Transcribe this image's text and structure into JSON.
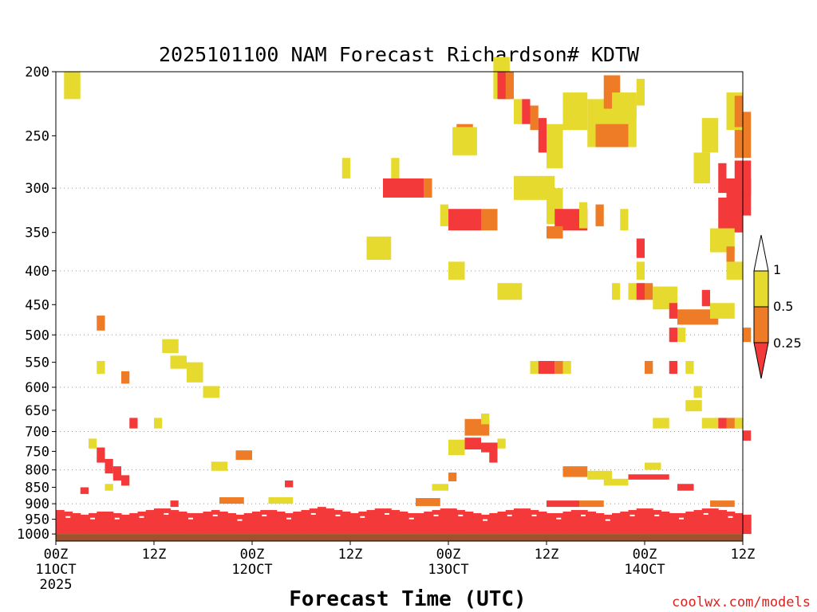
{
  "chart_data": {
    "type": "heatmap",
    "title": "2025101100 NAM Forecast Richardson# KDTW",
    "xlabel": "Forecast Time (UTC)",
    "ylabel": "",
    "ylim": [
      1025,
      200
    ],
    "y_scale": "log-pressure",
    "y_ticks": [
      200,
      250,
      300,
      350,
      400,
      450,
      500,
      550,
      600,
      650,
      700,
      750,
      800,
      850,
      900,
      950,
      1000
    ],
    "y_gridlines": [
      300,
      400,
      500,
      600,
      700,
      800,
      900,
      950
    ],
    "x_range_hours": [
      0,
      84
    ],
    "x_ticks": [
      {
        "hour": 0,
        "label": "00Z",
        "sub": "11OCT",
        "sub2": "2025"
      },
      {
        "hour": 12,
        "label": "12Z",
        "sub": "",
        "sub2": ""
      },
      {
        "hour": 24,
        "label": "00Z",
        "sub": "12OCT",
        "sub2": ""
      },
      {
        "hour": 36,
        "label": "12Z",
        "sub": "",
        "sub2": ""
      },
      {
        "hour": 48,
        "label": "00Z",
        "sub": "13OCT",
        "sub2": ""
      },
      {
        "hour": 60,
        "label": "12Z",
        "sub": "",
        "sub2": ""
      },
      {
        "hour": 72,
        "label": "00Z",
        "sub": "14OCT",
        "sub2": ""
      },
      {
        "hour": 84,
        "label": "12Z",
        "sub": "",
        "sub2": ""
      }
    ],
    "colorbar": {
      "labels": [
        "1",
        "0.5",
        "0.25"
      ],
      "levels": [
        {
          "range": "0.5-1",
          "color": "#e6da2e"
        },
        {
          "range": "0.25-0.5",
          "color": "#ee7b25"
        },
        {
          "range": "<0.25",
          "color": "#f4393a"
        }
      ]
    },
    "ground": {
      "from_hpa": 1000,
      "color": "#a0522d"
    },
    "low_ri_band": {
      "color": "#f4393a",
      "top_hpa": [
        920,
        925,
        930,
        935,
        930,
        925,
        925,
        930,
        935,
        930,
        925,
        920,
        915,
        915,
        920,
        925,
        930,
        930,
        925,
        920,
        925,
        930,
        935,
        930,
        925,
        920,
        920,
        925,
        930,
        925,
        920,
        915,
        910,
        915,
        920,
        925,
        930,
        925,
        920,
        915,
        915,
        920,
        925,
        930,
        930,
        925,
        920,
        915,
        915,
        920,
        925,
        930,
        935,
        930,
        925,
        920,
        915,
        915,
        920,
        925,
        930,
        930,
        925,
        920,
        920,
        925,
        930,
        935,
        930,
        925,
        920,
        915,
        915,
        920,
        925,
        930,
        930,
        925,
        920,
        915,
        915,
        920,
        925,
        930,
        935
      ]
    },
    "cells": [
      {
        "hour": 1,
        "p": 210,
        "dh": 2,
        "dp": 20,
        "ri": "yellow"
      },
      {
        "hour": 53.5,
        "p": 205,
        "dh": 2,
        "dp": 30,
        "ri": "yellow"
      },
      {
        "hour": 54,
        "p": 210,
        "dh": 1.5,
        "dp": 20,
        "ri": "red"
      },
      {
        "hour": 55,
        "p": 210,
        "dh": 1,
        "dp": 20,
        "ri": "orange"
      },
      {
        "hour": 56,
        "p": 230,
        "dh": 1,
        "dp": 20,
        "ri": "yellow"
      },
      {
        "hour": 57,
        "p": 230,
        "dh": 1,
        "dp": 20,
        "ri": "red"
      },
      {
        "hour": 58,
        "p": 235,
        "dh": 1,
        "dp": 20,
        "ri": "orange"
      },
      {
        "hour": 59,
        "p": 250,
        "dh": 1,
        "dp": 30,
        "ri": "red"
      },
      {
        "hour": 60,
        "p": 260,
        "dh": 2,
        "dp": 40,
        "ri": "yellow"
      },
      {
        "hour": 62,
        "p": 230,
        "dh": 3,
        "dp": 30,
        "ri": "yellow"
      },
      {
        "hour": 65,
        "p": 240,
        "dh": 6,
        "dp": 40,
        "ri": "yellow"
      },
      {
        "hour": 66,
        "p": 250,
        "dh": 4,
        "dp": 20,
        "ri": "orange"
      },
      {
        "hour": 67,
        "p": 215,
        "dh": 2,
        "dp": 25,
        "ri": "orange"
      },
      {
        "hour": 68,
        "p": 225,
        "dh": 3,
        "dp": 20,
        "ri": "yellow"
      },
      {
        "hour": 71,
        "p": 215,
        "dh": 1,
        "dp": 20,
        "ri": "yellow"
      },
      {
        "hour": 49,
        "p": 250,
        "dh": 2,
        "dp": 20,
        "ri": "orange"
      },
      {
        "hour": 48.5,
        "p": 255,
        "dh": 3,
        "dp": 25,
        "ri": "yellow"
      },
      {
        "hour": 35,
        "p": 280,
        "dh": 1,
        "dp": 20,
        "ri": "yellow"
      },
      {
        "hour": 41,
        "p": 280,
        "dh": 1,
        "dp": 20,
        "ri": "yellow"
      },
      {
        "hour": 40,
        "p": 300,
        "dh": 5,
        "dp": 20,
        "ri": "red"
      },
      {
        "hour": 45,
        "p": 300,
        "dh": 1,
        "dp": 20,
        "ri": "orange"
      },
      {
        "hour": 47,
        "p": 330,
        "dh": 1,
        "dp": 25,
        "ri": "yellow"
      },
      {
        "hour": 48,
        "p": 335,
        "dh": 4,
        "dp": 25,
        "ri": "red"
      },
      {
        "hour": 52,
        "p": 335,
        "dh": 2,
        "dp": 25,
        "ri": "orange"
      },
      {
        "hour": 56,
        "p": 300,
        "dh": 5,
        "dp": 25,
        "ri": "yellow"
      },
      {
        "hour": 60,
        "p": 320,
        "dh": 2,
        "dp": 40,
        "ri": "yellow"
      },
      {
        "hour": 61,
        "p": 335,
        "dh": 4,
        "dp": 25,
        "ri": "red"
      },
      {
        "hour": 60,
        "p": 350,
        "dh": 2,
        "dp": 15,
        "ri": "orange"
      },
      {
        "hour": 64,
        "p": 330,
        "dh": 1,
        "dp": 30,
        "ri": "yellow"
      },
      {
        "hour": 69,
        "p": 335,
        "dh": 1,
        "dp": 25,
        "ri": "yellow"
      },
      {
        "hour": 38,
        "p": 370,
        "dh": 3,
        "dp": 30,
        "ri": "yellow"
      },
      {
        "hour": 48,
        "p": 400,
        "dh": 2,
        "dp": 25,
        "ri": "yellow"
      },
      {
        "hour": 54,
        "p": 430,
        "dh": 3,
        "dp": 25,
        "ri": "yellow"
      },
      {
        "hour": 71,
        "p": 370,
        "dh": 1,
        "dp": 25,
        "ri": "red"
      },
      {
        "hour": 71,
        "p": 400,
        "dh": 1,
        "dp": 25,
        "ri": "yellow"
      },
      {
        "hour": 68,
        "p": 430,
        "dh": 1,
        "dp": 25,
        "ri": "yellow"
      },
      {
        "hour": 70,
        "p": 430,
        "dh": 2,
        "dp": 25,
        "ri": "yellow"
      },
      {
        "hour": 71,
        "p": 430,
        "dh": 1,
        "dp": 25,
        "ri": "red"
      },
      {
        "hour": 72,
        "p": 430,
        "dh": 1,
        "dp": 25,
        "ri": "orange"
      },
      {
        "hour": 73,
        "p": 440,
        "dh": 3,
        "dp": 35,
        "ri": "yellow"
      },
      {
        "hour": 75,
        "p": 460,
        "dh": 1,
        "dp": 25,
        "ri": "red"
      },
      {
        "hour": 76,
        "p": 470,
        "dh": 2,
        "dp": 25,
        "ri": "orange"
      },
      {
        "hour": 78,
        "p": 470,
        "dh": 3,
        "dp": 25,
        "ri": "orange"
      },
      {
        "hour": 79,
        "p": 440,
        "dh": 1,
        "dp": 25,
        "ri": "red"
      },
      {
        "hour": 80,
        "p": 460,
        "dh": 3,
        "dp": 25,
        "ri": "yellow"
      },
      {
        "hour": 75,
        "p": 500,
        "dh": 1,
        "dp": 25,
        "ri": "red"
      },
      {
        "hour": 76,
        "p": 500,
        "dh": 1,
        "dp": 25,
        "ri": "yellow"
      },
      {
        "hour": 84,
        "p": 500,
        "dh": 1,
        "dp": 25,
        "ri": "orange"
      },
      {
        "hour": 78,
        "p": 280,
        "dh": 2,
        "dp": 30,
        "ri": "yellow"
      },
      {
        "hour": 79,
        "p": 250,
        "dh": 2,
        "dp": 30,
        "ri": "yellow"
      },
      {
        "hour": 81,
        "p": 290,
        "dh": 1,
        "dp": 30,
        "ri": "red"
      },
      {
        "hour": 81,
        "p": 330,
        "dh": 3,
        "dp": 40,
        "ri": "red"
      },
      {
        "hour": 82,
        "p": 310,
        "dh": 3,
        "dp": 40,
        "ri": "red"
      },
      {
        "hour": 83,
        "p": 250,
        "dh": 2,
        "dp": 40,
        "ri": "orange"
      },
      {
        "hour": 83,
        "p": 290,
        "dh": 2,
        "dp": 35,
        "ri": "red"
      },
      {
        "hour": 82,
        "p": 230,
        "dh": 2,
        "dp": 30,
        "ri": "yellow"
      },
      {
        "hour": 83,
        "p": 230,
        "dh": 1,
        "dp": 25,
        "ri": "orange"
      },
      {
        "hour": 80,
        "p": 360,
        "dh": 3,
        "dp": 30,
        "ri": "yellow"
      },
      {
        "hour": 82,
        "p": 380,
        "dh": 1,
        "dp": 25,
        "ri": "orange"
      },
      {
        "hour": 82,
        "p": 400,
        "dh": 2,
        "dp": 25,
        "ri": "yellow"
      },
      {
        "hour": 66,
        "p": 330,
        "dh": 1,
        "dp": 25,
        "ri": "orange"
      },
      {
        "hour": 5,
        "p": 480,
        "dh": 1,
        "dp": 25,
        "ri": "orange"
      },
      {
        "hour": 5,
        "p": 560,
        "dh": 1,
        "dp": 25,
        "ri": "yellow"
      },
      {
        "hour": 13,
        "p": 520,
        "dh": 2,
        "dp": 25,
        "ri": "yellow"
      },
      {
        "hour": 14,
        "p": 550,
        "dh": 2,
        "dp": 25,
        "ri": "yellow"
      },
      {
        "hour": 16,
        "p": 570,
        "dh": 2,
        "dp": 40,
        "ri": "yellow"
      },
      {
        "hour": 18,
        "p": 610,
        "dh": 2,
        "dp": 25,
        "ri": "yellow"
      },
      {
        "hour": 8,
        "p": 580,
        "dh": 1,
        "dp": 25,
        "ri": "orange"
      },
      {
        "hour": 58,
        "p": 560,
        "dh": 1,
        "dp": 25,
        "ri": "yellow"
      },
      {
        "hour": 59,
        "p": 560,
        "dh": 2,
        "dp": 25,
        "ri": "red"
      },
      {
        "hour": 61,
        "p": 560,
        "dh": 1,
        "dp": 25,
        "ri": "orange"
      },
      {
        "hour": 62,
        "p": 560,
        "dh": 1,
        "dp": 25,
        "ri": "yellow"
      },
      {
        "hour": 72,
        "p": 560,
        "dh": 1,
        "dp": 25,
        "ri": "orange"
      },
      {
        "hour": 75,
        "p": 560,
        "dh": 1,
        "dp": 25,
        "ri": "red"
      },
      {
        "hour": 77,
        "p": 560,
        "dh": 1,
        "dp": 25,
        "ri": "yellow"
      },
      {
        "hour": 78,
        "p": 610,
        "dh": 1,
        "dp": 25,
        "ri": "yellow"
      },
      {
        "hour": 77,
        "p": 640,
        "dh": 2,
        "dp": 25,
        "ri": "yellow"
      },
      {
        "hour": 9,
        "p": 680,
        "dh": 1,
        "dp": 25,
        "ri": "red"
      },
      {
        "hour": 12,
        "p": 680,
        "dh": 1,
        "dp": 25,
        "ri": "yellow"
      },
      {
        "hour": 73,
        "p": 680,
        "dh": 2,
        "dp": 25,
        "ri": "yellow"
      },
      {
        "hour": 79,
        "p": 680,
        "dh": 2,
        "dp": 25,
        "ri": "yellow"
      },
      {
        "hour": 81,
        "p": 680,
        "dh": 1,
        "dp": 25,
        "ri": "red"
      },
      {
        "hour": 82,
        "p": 680,
        "dh": 2,
        "dp": 25,
        "ri": "orange"
      },
      {
        "hour": 83,
        "p": 680,
        "dh": 1,
        "dp": 25,
        "ri": "yellow"
      },
      {
        "hour": 84,
        "p": 710,
        "dh": 1,
        "dp": 25,
        "ri": "red"
      },
      {
        "hour": 50,
        "p": 690,
        "dh": 3,
        "dp": 40,
        "ri": "orange"
      },
      {
        "hour": 52,
        "p": 670,
        "dh": 1,
        "dp": 25,
        "ri": "yellow"
      },
      {
        "hour": 48,
        "p": 740,
        "dh": 2,
        "dp": 40,
        "ri": "yellow"
      },
      {
        "hour": 50,
        "p": 730,
        "dh": 2,
        "dp": 30,
        "ri": "red"
      },
      {
        "hour": 52,
        "p": 740,
        "dh": 2,
        "dp": 25,
        "ri": "red"
      },
      {
        "hour": 53,
        "p": 760,
        "dh": 1,
        "dp": 40,
        "ri": "red"
      },
      {
        "hour": 54,
        "p": 730,
        "dh": 1,
        "dp": 25,
        "ri": "yellow"
      },
      {
        "hour": 4,
        "p": 730,
        "dh": 1,
        "dp": 25,
        "ri": "yellow"
      },
      {
        "hour": 5,
        "p": 760,
        "dh": 1,
        "dp": 40,
        "ri": "red"
      },
      {
        "hour": 6,
        "p": 790,
        "dh": 1,
        "dp": 40,
        "ri": "red"
      },
      {
        "hour": 7,
        "p": 810,
        "dh": 1,
        "dp": 40,
        "ri": "red"
      },
      {
        "hour": 8,
        "p": 830,
        "dh": 1,
        "dp": 30,
        "ri": "red"
      },
      {
        "hour": 22,
        "p": 760,
        "dh": 2,
        "dp": 25,
        "ri": "orange"
      },
      {
        "hour": 19,
        "p": 790,
        "dh": 2,
        "dp": 25,
        "ri": "yellow"
      },
      {
        "hour": 62,
        "p": 805,
        "dh": 3,
        "dp": 30,
        "ri": "orange"
      },
      {
        "hour": 65,
        "p": 815,
        "dh": 3,
        "dp": 25,
        "ri": "yellow"
      },
      {
        "hour": 70,
        "p": 820,
        "dh": 5,
        "dp": 15,
        "ri": "red"
      },
      {
        "hour": 72,
        "p": 790,
        "dh": 2,
        "dp": 20,
        "ri": "yellow"
      },
      {
        "hour": 67,
        "p": 835,
        "dh": 3,
        "dp": 20,
        "ri": "yellow"
      },
      {
        "hour": 46,
        "p": 850,
        "dh": 2,
        "dp": 20,
        "ri": "yellow"
      },
      {
        "hour": 48,
        "p": 820,
        "dh": 1,
        "dp": 25,
        "ri": "orange"
      },
      {
        "hour": 76,
        "p": 850,
        "dh": 2,
        "dp": 20,
        "ri": "red"
      },
      {
        "hour": 6,
        "p": 850,
        "dh": 1,
        "dp": 20,
        "ri": "yellow"
      },
      {
        "hour": 3,
        "p": 860,
        "dh": 1,
        "dp": 20,
        "ri": "red"
      },
      {
        "hour": 28,
        "p": 840,
        "dh": 1,
        "dp": 20,
        "ri": "red"
      },
      {
        "hour": 14,
        "p": 900,
        "dh": 1,
        "dp": 20,
        "ri": "red"
      },
      {
        "hour": 20,
        "p": 890,
        "dh": 3,
        "dp": 20,
        "ri": "orange"
      },
      {
        "hour": 26,
        "p": 890,
        "dh": 3,
        "dp": 20,
        "ri": "yellow"
      },
      {
        "hour": 44,
        "p": 895,
        "dh": 3,
        "dp": 25,
        "ri": "orange"
      },
      {
        "hour": 60,
        "p": 900,
        "dh": 4,
        "dp": 20,
        "ri": "red"
      },
      {
        "hour": 64,
        "p": 900,
        "dh": 3,
        "dp": 20,
        "ri": "orange"
      },
      {
        "hour": 80,
        "p": 900,
        "dh": 3,
        "dp": 20,
        "ri": "orange"
      }
    ]
  },
  "credit": "coolwx.com/models"
}
